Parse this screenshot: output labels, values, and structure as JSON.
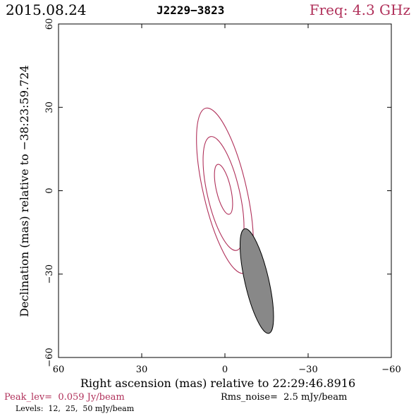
{
  "header": {
    "date": "2015.08.24",
    "source": "J2229−3823",
    "freq": "Freq: 4.3 GHz"
  },
  "footer": {
    "peak": "Peak_lev=  0.059 Jy/beam",
    "rms": "Rms_noise=  2.5 mJy/beam",
    "levels": "Levels:  12,  25,  50 mJy/beam"
  },
  "colors": {
    "accent": "#b0305a",
    "beam_fill": "#888888",
    "axes": "#000000"
  },
  "chart_data": {
    "type": "contour",
    "xlabel": "Right ascension (mas) relative to 22:29:46.8916",
    "ylabel": "Declination (mas) relative to −38:23:59.724",
    "xlim": [
      60,
      -60
    ],
    "ylim": [
      -60,
      60
    ],
    "x_ticks": [
      60,
      30,
      0,
      -30,
      -60
    ],
    "x_tick_labels": [
      "60",
      "30",
      "0",
      "−30",
      "−60"
    ],
    "y_ticks": [
      -60,
      -30,
      0,
      30,
      60
    ],
    "y_tick_labels": [
      "−60",
      "−30",
      "0",
      "30",
      "60"
    ],
    "grid": false,
    "contour_levels_mJy": [
      12,
      25,
      50
    ],
    "contours": [
      {
        "level": 12,
        "center": [
          0,
          0
        ],
        "semi_major": 30.5,
        "semi_minor": 7.8,
        "pa_deg": -13
      },
      {
        "level": 25,
        "center": [
          0.5,
          -1
        ],
        "semi_major": 21,
        "semi_minor": 5.8,
        "pa_deg": -13
      },
      {
        "level": 50,
        "center": [
          0.5,
          0.5
        ],
        "semi_major": 9.2,
        "semi_minor": 2.6,
        "pa_deg": -13
      }
    ],
    "beam": {
      "center": [
        -11.5,
        -32.5
      ],
      "semi_major": 19.3,
      "semi_minor": 4.3,
      "pa_deg": -13
    }
  }
}
